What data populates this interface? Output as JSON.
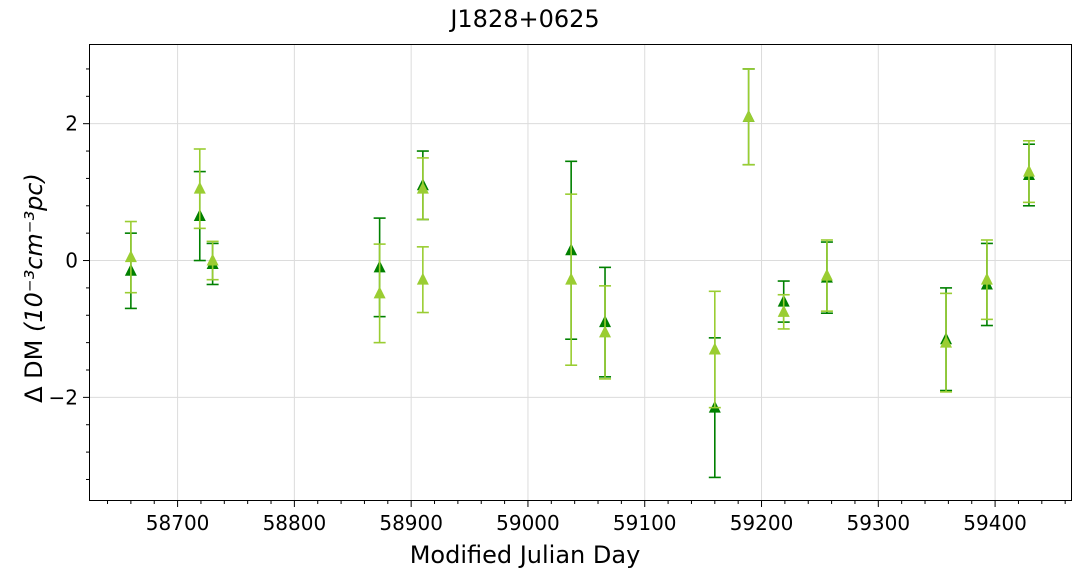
{
  "chart_data": {
    "type": "scatter",
    "title": "J1828+0625",
    "xlabel": "Modified Julian Day",
    "ylabel_prefix": "Δ DM",
    "ylabel_unit": "(10⁻³cm⁻³pc)",
    "xlim": [
      58625,
      59465
    ],
    "ylim": [
      -3.5,
      3.15
    ],
    "xticks": [
      58700,
      58800,
      58900,
      59000,
      59100,
      59200,
      59300,
      59400
    ],
    "yticks": [
      -2,
      0,
      2
    ],
    "xtick_labels": [
      "58700",
      "58800",
      "58900",
      "59000",
      "59100",
      "59200",
      "59300",
      "59400"
    ],
    "ytick_labels": [
      "−2",
      "0",
      "2"
    ],
    "grid": true,
    "marker": "triangle",
    "series": [
      {
        "color": "#008000",
        "points": [
          {
            "x": 58660,
            "y": -0.15,
            "err": 0.55
          },
          {
            "x": 58719,
            "y": 0.65,
            "err": 0.65
          },
          {
            "x": 58730,
            "y": -0.05,
            "err": 0.3
          },
          {
            "x": 58873,
            "y": -0.1,
            "err": 0.72
          },
          {
            "x": 58910,
            "y": 1.1,
            "err": 0.5
          },
          {
            "x": 59037,
            "y": 0.15,
            "err": 1.3
          },
          {
            "x": 59066,
            "y": -0.9,
            "err": 0.8
          },
          {
            "x": 59160,
            "y": -2.15,
            "err": 1.02
          },
          {
            "x": 59189,
            "y": 2.1,
            "err": 0.7
          },
          {
            "x": 59219,
            "y": -0.6,
            "err": 0.3
          },
          {
            "x": 59256,
            "y": -0.25,
            "err": 0.52
          },
          {
            "x": 59358,
            "y": -1.15,
            "err": 0.75
          },
          {
            "x": 59393,
            "y": -0.35,
            "err": 0.6
          },
          {
            "x": 59429,
            "y": 1.25,
            "err": 0.45
          }
        ]
      },
      {
        "color": "#9acd32",
        "points": [
          {
            "x": 58660,
            "y": 0.05,
            "err": 0.52
          },
          {
            "x": 58719,
            "y": 1.05,
            "err": 0.58
          },
          {
            "x": 58730,
            "y": 0.0,
            "err": 0.28
          },
          {
            "x": 58873,
            "y": -0.48,
            "err": 0.72
          },
          {
            "x": 58910,
            "y": -0.28,
            "err": 0.48
          },
          {
            "x": 58910,
            "y": 1.05,
            "err": 0.45
          },
          {
            "x": 59037,
            "y": -0.28,
            "err": 1.25
          },
          {
            "x": 59066,
            "y": -1.05,
            "err": 0.68
          },
          {
            "x": 59160,
            "y": -1.3,
            "err": 0.85
          },
          {
            "x": 59189,
            "y": 2.1,
            "err": 0.7
          },
          {
            "x": 59219,
            "y": -0.75,
            "err": 0.25
          },
          {
            "x": 59256,
            "y": -0.22,
            "err": 0.52
          },
          {
            "x": 59358,
            "y": -1.2,
            "err": 0.72
          },
          {
            "x": 59393,
            "y": -0.28,
            "err": 0.58
          },
          {
            "x": 59429,
            "y": 1.3,
            "err": 0.45
          }
        ]
      }
    ]
  }
}
